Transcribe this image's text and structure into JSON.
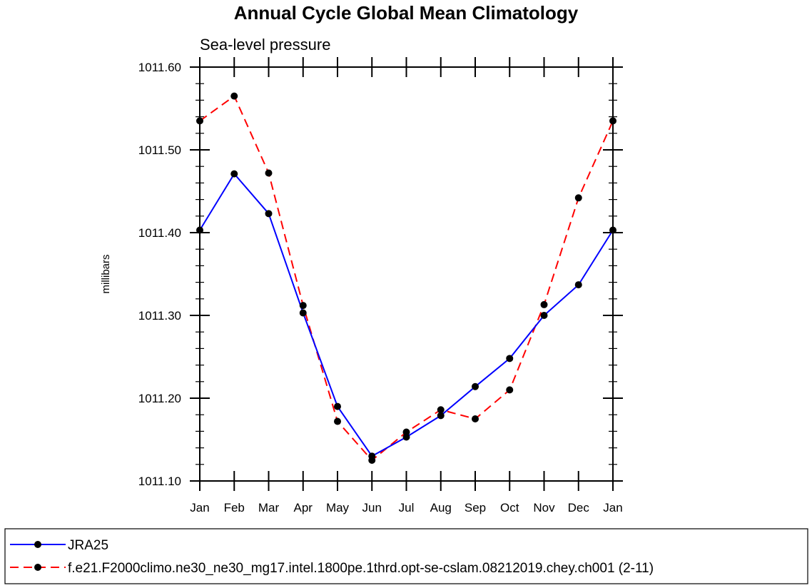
{
  "chart_data": {
    "type": "line",
    "title": "Annual Cycle Global Mean Climatology",
    "subtitle": "Sea-level pressure",
    "xlabel": "",
    "ylabel": "millibars",
    "categories": [
      "Jan",
      "Feb",
      "Mar",
      "Apr",
      "May",
      "Jun",
      "Jul",
      "Aug",
      "Sep",
      "Oct",
      "Nov",
      "Dec",
      "Jan"
    ],
    "ylim": [
      1011.1,
      1011.6
    ],
    "yticks": [
      "1011.10",
      "1011.20",
      "1011.30",
      "1011.40",
      "1011.50",
      "1011.60"
    ],
    "grid": false,
    "legend_position": "bottom",
    "series": [
      {
        "name": "JRA25",
        "color": "#0000ff",
        "line_style": "solid",
        "marker": "filled-circle",
        "values": [
          1011.403,
          1011.471,
          1011.423,
          1011.303,
          1011.19,
          1011.13,
          1011.153,
          1011.179,
          1011.214,
          1011.248,
          1011.3,
          1011.337,
          1011.403
        ]
      },
      {
        "name": "f.e21.F2000climo.ne30_ne30_mg17.intel.1800pe.1thrd.opt-se-cslam.08212019.chey.ch001 (2-11)",
        "color": "#ff0000",
        "line_style": "dashed",
        "marker": "filled-circle",
        "values": [
          1011.535,
          1011.565,
          1011.472,
          1011.312,
          1011.172,
          1011.125,
          1011.159,
          1011.186,
          1011.175,
          1011.21,
          1011.313,
          1011.442,
          1011.535
        ]
      }
    ]
  }
}
